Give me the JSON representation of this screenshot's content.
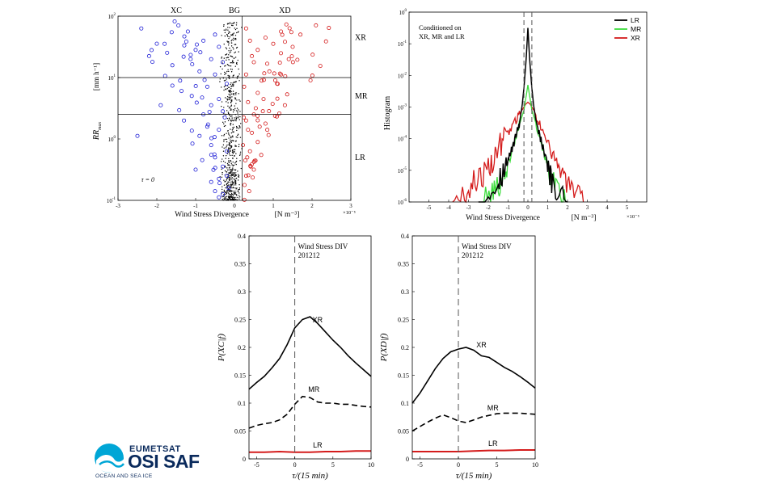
{
  "chart_data": [
    {
      "id": "scatter",
      "type": "scatter",
      "xlabel": "Wind Stress Divergence",
      "xunit": "[N m⁻³]",
      "xscale": "×10⁻⁵",
      "ylabel_main": "RR",
      "ylabel_sub": "max",
      "yunit": "[mm h⁻¹]",
      "xlim": [
        -3,
        3
      ],
      "ylim_log10": [
        -1,
        2
      ],
      "xticks": [
        "-3",
        "-2",
        "-1",
        "0",
        "1",
        "2",
        "3"
      ],
      "yticks": [
        {
          "base": "10",
          "exp": "-1",
          "value": -1
        },
        {
          "base": "10",
          "exp": "0",
          "value": 0
        },
        {
          "base": "10",
          "exp": "1",
          "value": 1
        },
        {
          "base": "10",
          "exp": "2",
          "value": 2
        }
      ],
      "class_labels": [
        "XC",
        "BG",
        "XD"
      ],
      "class_label_x": [
        -1.5,
        0,
        1.3
      ],
      "regime_labels": [
        "XR",
        "MR",
        "LR"
      ],
      "regime_label_y": [
        1.65,
        0.7,
        -0.3
      ],
      "hlines_log10": [
        1.0,
        0.4
      ],
      "vlines": [
        0.2
      ],
      "annotation": "τ = 0",
      "series": [
        {
          "name": "XC",
          "color": "#1f1fd6",
          "marker": "circle",
          "x": [
            -2.4,
            -2.2,
            -2.5,
            -1.8,
            -1.6,
            -1.9,
            -1.2,
            -1.0,
            -0.8,
            -1.4,
            -0.6,
            -0.9,
            -1.1,
            -0.7,
            -0.5,
            -0.4,
            -0.6,
            -0.8,
            -1.3,
            -0.5,
            -0.3,
            -0.7,
            -0.4,
            -0.9,
            -0.2,
            -0.6,
            -0.3,
            -0.5,
            -0.4,
            -1.0,
            -0.2,
            -0.3,
            -0.6,
            -0.4,
            -0.5,
            -0.3,
            -0.2,
            -0.4,
            -0.25,
            -0.15
          ],
          "y": [
            1.8,
            1.35,
            0.05,
            1.55,
            1.2,
            0.55,
            1.75,
            1.45,
            1.6,
            0.95,
            1.3,
            1.1,
            0.7,
            0.85,
            1.7,
            1.5,
            0.55,
            0.4,
            0.3,
            1.05,
            1.25,
            0.2,
            0.65,
            0.05,
            0.9,
            -0.1,
            0.45,
            -0.3,
            0.15,
            -0.5,
            -0.2,
            -0.45,
            -0.7,
            -0.65,
            -0.85,
            -0.9,
            -0.6,
            -0.95,
            0.35,
            -0.8
          ]
        },
        {
          "name": "XD",
          "color": "#d41c1c",
          "marker": "circle",
          "x": [
            2.1,
            1.7,
            1.5,
            1.2,
            1.0,
            0.8,
            1.4,
            0.6,
            0.9,
            0.5,
            1.1,
            0.7,
            0.4,
            0.6,
            1.3,
            0.3,
            0.5,
            0.8,
            0.35,
            0.45,
            0.25,
            0.6,
            0.3,
            0.4,
            0.55,
            0.28,
            0.35,
            0.22,
            0.42,
            0.3,
            0.5,
            0.26,
            0.38,
            0.24,
            0.33,
            1.2,
            0.75,
            0.65,
            0.45,
            0.3
          ],
          "y": [
            1.85,
            1.7,
            1.5,
            1.75,
            1.55,
            1.65,
            1.3,
            1.45,
            1.1,
            1.25,
            0.9,
            0.95,
            1.6,
            0.75,
            0.55,
            1.05,
            0.4,
            0.25,
            0.6,
            0.1,
            0.85,
            -0.05,
            0.3,
            -0.2,
            0.5,
            -0.35,
            0.15,
            -0.1,
            -0.45,
            -0.6,
            -0.5,
            -0.75,
            -0.85,
            0.35,
            -0.3,
            1.05,
            0.65,
            0.2,
            1.35,
            1.8
          ]
        }
      ],
      "background_points": {
        "name": "BG",
        "color": "#000000",
        "xrange": [
          -0.4,
          0.2
        ],
        "count": 650
      }
    },
    {
      "id": "histogram",
      "type": "line",
      "title_lines": [
        "Conditioned on",
        "XR, MR and LR"
      ],
      "xlabel": "Wind Stress Divergence",
      "xunit": "[N m⁻³]",
      "xscale": "×10⁻⁵",
      "ylabel": "Histogram",
      "xlim": [
        -6,
        6
      ],
      "ylim_log10": [
        -6,
        0
      ],
      "xticks": [
        "-5",
        "-4",
        "-3",
        "-2",
        "-1",
        "0",
        "1",
        "2",
        "3",
        "4",
        "5"
      ],
      "yticks": [
        {
          "base": "10",
          "exp": "-6",
          "value": -6
        },
        {
          "base": "10",
          "exp": "-5",
          "value": -5
        },
        {
          "base": "10",
          "exp": "-4",
          "value": -4
        },
        {
          "base": "10",
          "exp": "-3",
          "value": -3
        },
        {
          "base": "10",
          "exp": "-2",
          "value": -2
        },
        {
          "base": "10",
          "exp": "-1",
          "value": -1
        },
        {
          "base": "10",
          "exp": "0",
          "value": 0
        }
      ],
      "vlines": [
        -0.2,
        0.2
      ],
      "legend_position": "top-right",
      "series": [
        {
          "name": "LR",
          "color": "#000000",
          "x": [
            -2.5,
            -2.0,
            -1.5,
            -1.2,
            -1.0,
            -0.8,
            -0.6,
            -0.4,
            -0.3,
            -0.2,
            -0.1,
            0.0,
            0.1,
            0.2,
            0.3,
            0.4,
            0.6,
            0.8,
            1.0,
            1.2,
            1.5,
            2.0
          ],
          "y_log10": [
            -6.0,
            -5.8,
            -5.3,
            -5.0,
            -4.7,
            -4.3,
            -3.9,
            -3.4,
            -3.0,
            -2.4,
            -1.6,
            -0.5,
            -1.6,
            -2.4,
            -3.0,
            -3.4,
            -3.9,
            -4.4,
            -4.9,
            -5.4,
            -5.8,
            -6.0
          ]
        },
        {
          "name": "MR",
          "color": "#3ddc3d",
          "x": [
            -2.3,
            -1.8,
            -1.5,
            -1.2,
            -1.0,
            -0.8,
            -0.6,
            -0.4,
            -0.2,
            -0.1,
            0.0,
            0.1,
            0.2,
            0.4,
            0.6,
            0.8,
            1.0,
            1.2,
            1.5,
            1.9
          ],
          "y_log10": [
            -6.0,
            -5.7,
            -5.5,
            -5.1,
            -4.8,
            -4.4,
            -3.9,
            -3.5,
            -3.1,
            -2.7,
            -2.3,
            -2.7,
            -3.1,
            -3.5,
            -3.9,
            -4.4,
            -4.9,
            -5.3,
            -5.7,
            -6.0
          ]
        },
        {
          "name": "XR",
          "color": "#d41c1c",
          "x": [
            -3.8,
            -3.2,
            -2.8,
            -2.4,
            -2.0,
            -1.7,
            -1.4,
            -1.1,
            -0.8,
            -0.5,
            -0.3,
            -0.1,
            0.0,
            0.1,
            0.3,
            0.5,
            0.8,
            1.1,
            1.4,
            1.7,
            2.0,
            2.4,
            2.8
          ],
          "y_log10": [
            -6.0,
            -5.8,
            -5.4,
            -5.2,
            -5.0,
            -4.6,
            -4.2,
            -3.9,
            -3.6,
            -3.3,
            -3.1,
            -2.9,
            -2.85,
            -2.9,
            -3.1,
            -3.4,
            -3.8,
            -4.2,
            -4.7,
            -5.1,
            -5.4,
            -5.8,
            -6.0
          ]
        }
      ]
    },
    {
      "id": "pxc",
      "type": "line",
      "title_lines": [
        "Wind Stress DIV",
        "201212"
      ],
      "xlabel": "τ/(15 min)",
      "ylabel": "P(XC|f)",
      "xlim": [
        -6,
        10
      ],
      "ylim": [
        0,
        0.4
      ],
      "xticks": [
        "-5",
        "0",
        "5",
        "10"
      ],
      "yticks": [
        "0",
        "0.05",
        "0.1",
        "0.15",
        "0.2",
        "0.25",
        "0.3",
        "0.35",
        "0.4"
      ],
      "vlines": [
        0
      ],
      "series": [
        {
          "name": "XR",
          "style": "solid",
          "color": "#000000",
          "x": [
            -6,
            -5,
            -4,
            -3,
            -2,
            -1,
            0,
            1,
            2,
            3,
            4,
            5,
            6,
            7,
            8,
            9,
            10
          ],
          "y": [
            0.125,
            0.137,
            0.148,
            0.163,
            0.18,
            0.205,
            0.235,
            0.25,
            0.255,
            0.243,
            0.228,
            0.213,
            0.2,
            0.185,
            0.172,
            0.16,
            0.148
          ]
        },
        {
          "name": "MR",
          "style": "dashed",
          "color": "#000000",
          "x": [
            -6,
            -5,
            -4,
            -3,
            -2,
            -1,
            0,
            1,
            2,
            3,
            4,
            5,
            6,
            7,
            8,
            9,
            10
          ],
          "y": [
            0.055,
            0.06,
            0.063,
            0.065,
            0.07,
            0.08,
            0.098,
            0.112,
            0.11,
            0.102,
            0.1,
            0.1,
            0.098,
            0.098,
            0.096,
            0.094,
            0.093
          ]
        },
        {
          "name": "LR",
          "style": "solid",
          "color": "#d41c1c",
          "x": [
            -6,
            -4,
            -2,
            0,
            2,
            4,
            6,
            8,
            10
          ],
          "y": [
            0.012,
            0.012,
            0.013,
            0.012,
            0.012,
            0.013,
            0.013,
            0.014,
            0.014
          ]
        }
      ],
      "series_labels": [
        {
          "name": "XR",
          "x": 3.0,
          "y": 0.245
        },
        {
          "name": "MR",
          "x": 2.5,
          "y": 0.12
        },
        {
          "name": "LR",
          "x": 3.0,
          "y": 0.02
        }
      ]
    },
    {
      "id": "pxd",
      "type": "line",
      "title_lines": [
        "Wind Stress DIV",
        "201212"
      ],
      "xlabel": "τ/(15 min)",
      "ylabel": "P(XD|f)",
      "xlim": [
        -6,
        10
      ],
      "ylim": [
        0,
        0.4
      ],
      "xticks": [
        "-5",
        "0",
        "5",
        "10"
      ],
      "yticks": [
        "0",
        "0.05",
        "0.1",
        "0.15",
        "0.2",
        "0.25",
        "0.3",
        "0.35",
        "0.4"
      ],
      "vlines": [
        0
      ],
      "series": [
        {
          "name": "XR",
          "style": "solid",
          "color": "#000000",
          "x": [
            -6,
            -5,
            -4,
            -3,
            -2,
            -1,
            0,
            1,
            2,
            3,
            4,
            5,
            6,
            7,
            8,
            9,
            10
          ],
          "y": [
            0.1,
            0.118,
            0.14,
            0.162,
            0.18,
            0.192,
            0.197,
            0.2,
            0.195,
            0.185,
            0.182,
            0.173,
            0.164,
            0.157,
            0.148,
            0.138,
            0.127
          ]
        },
        {
          "name": "MR",
          "style": "dashed",
          "color": "#000000",
          "x": [
            -6,
            -5,
            -4,
            -3,
            -2,
            -1,
            0,
            1,
            2,
            3,
            4,
            5,
            6,
            7,
            8,
            9,
            10
          ],
          "y": [
            0.05,
            0.058,
            0.066,
            0.073,
            0.079,
            0.074,
            0.068,
            0.065,
            0.07,
            0.075,
            0.078,
            0.081,
            0.082,
            0.082,
            0.082,
            0.081,
            0.08
          ]
        },
        {
          "name": "LR",
          "style": "solid",
          "color": "#d41c1c",
          "x": [
            -6,
            -4,
            -2,
            0,
            2,
            4,
            6,
            8,
            10
          ],
          "y": [
            0.013,
            0.013,
            0.013,
            0.013,
            0.014,
            0.015,
            0.015,
            0.016,
            0.016
          ]
        }
      ],
      "series_labels": [
        {
          "name": "XR",
          "x": 3.0,
          "y": 0.2
        },
        {
          "name": "MR",
          "x": 4.5,
          "y": 0.087
        },
        {
          "name": "LR",
          "x": 4.5,
          "y": 0.023
        }
      ]
    }
  ],
  "logo": {
    "line1": "EUMETSAT",
    "line2": "OSI SAF",
    "line3": "OCEAN AND SEA ICE",
    "color": "#0a2a5c",
    "accent": "#00a6d6"
  }
}
